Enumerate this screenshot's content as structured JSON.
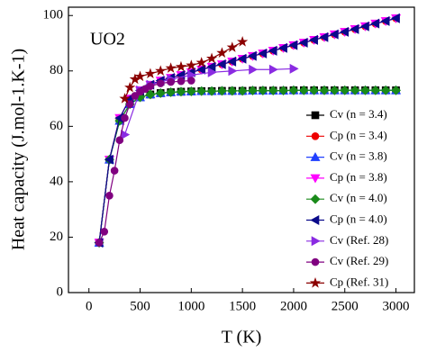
{
  "chart_data": {
    "type": "line",
    "title": "UO2",
    "xlabel": "T (K)",
    "ylabel": "Heat capacity (J.mol-1.K-1)",
    "xlim": [
      -200,
      3180
    ],
    "ylim": [
      0,
      103
    ],
    "xticks": [
      0,
      500,
      1000,
      1500,
      2000,
      2500,
      3000
    ],
    "yticks": [
      0,
      20,
      40,
      60,
      80,
      100
    ],
    "legend": "right",
    "x": [
      100,
      200,
      300,
      400,
      500,
      600,
      700,
      800,
      900,
      1000,
      1100,
      1200,
      1300,
      1400,
      1500,
      1600,
      1700,
      1800,
      1900,
      2000,
      2100,
      2200,
      2300,
      2400,
      2500,
      2600,
      2700,
      2800,
      2900,
      3000
    ],
    "series": [
      {
        "name": "Cv (n = 3.4)",
        "color": "#000000",
        "marker": "square",
        "values": [
          18,
          48,
          62,
          68,
          70.5,
          71.5,
          72,
          72.3,
          72.5,
          72.6,
          72.7,
          72.7,
          72.8,
          72.8,
          72.8,
          72.9,
          72.9,
          72.9,
          72.9,
          73,
          73,
          73,
          73,
          73,
          73,
          73,
          73,
          73,
          73,
          73
        ]
      },
      {
        "name": "Cp (n = 3.4)",
        "color": "#ee0000",
        "marker": "circle",
        "values": [
          18,
          48,
          63,
          70,
          73,
          75,
          76.5,
          77.5,
          78.5,
          79.5,
          80.5,
          81.5,
          82.4,
          83.4,
          84.4,
          85.4,
          86.3,
          87.3,
          88.3,
          89.3,
          90.2,
          91.2,
          92.2,
          93.2,
          94.1,
          95.1,
          96.1,
          97.1,
          98,
          99
        ]
      },
      {
        "name": "Cv (n = 3.8)",
        "color": "#2040ff",
        "marker": "triangle-up",
        "values": [
          18,
          48,
          62,
          68,
          70.5,
          71.5,
          72,
          72.3,
          72.5,
          72.6,
          72.7,
          72.7,
          72.8,
          72.8,
          72.8,
          72.9,
          72.9,
          72.9,
          72.9,
          73,
          73,
          73,
          73,
          73,
          73,
          73,
          73,
          73,
          73,
          73
        ]
      },
      {
        "name": "Cp (n = 3.8)",
        "color": "#ff00ff",
        "marker": "triangle-down",
        "values": [
          18,
          48,
          63,
          70,
          73,
          75,
          76.5,
          77.5,
          78.5,
          79.5,
          80.5,
          81.5,
          82.4,
          83.4,
          84.4,
          85.4,
          86.3,
          87.3,
          88.3,
          89.3,
          90.2,
          91.2,
          92.2,
          93.2,
          94.1,
          95.1,
          96.1,
          97.1,
          98,
          99
        ]
      },
      {
        "name": "Cv (n = 4.0)",
        "color": "#1a8a1a",
        "marker": "diamond",
        "values": [
          18,
          48,
          62,
          68,
          70.5,
          71.5,
          72,
          72.3,
          72.5,
          72.6,
          72.7,
          72.7,
          72.8,
          72.8,
          72.8,
          72.9,
          72.9,
          72.9,
          72.9,
          73,
          73,
          73,
          73,
          73,
          73,
          73,
          73,
          73,
          73,
          73
        ]
      },
      {
        "name": "Cp (n = 4.0)",
        "color": "#0a0a8a",
        "marker": "triangle-left",
        "values": [
          18,
          48,
          63,
          70,
          73,
          75,
          76.5,
          77.5,
          78.5,
          79.5,
          80.5,
          81.5,
          82.4,
          83.4,
          84.4,
          85.4,
          86.3,
          87.3,
          88.3,
          89.3,
          90.2,
          91.2,
          92.2,
          93.2,
          94.1,
          95.1,
          96.1,
          97.1,
          98,
          99
        ]
      },
      {
        "name": "Cv (Ref. 28)",
        "color": "#8a2be2",
        "marker": "triangle-right",
        "x": [
          350,
          500,
          600,
          800,
          1000,
          1200,
          1400,
          1600,
          1800,
          2000
        ],
        "values": [
          57,
          73,
          75,
          77,
          78.5,
          79.5,
          80,
          80.5,
          80.5,
          80.8
        ]
      },
      {
        "name": "Cv (Ref. 29)",
        "color": "#800080",
        "marker": "circle",
        "x": [
          100,
          150,
          200,
          250,
          300,
          350,
          400,
          450,
          500,
          550,
          600,
          700,
          800,
          900,
          1000
        ],
        "values": [
          18,
          22,
          35,
          44,
          55,
          63,
          68,
          71,
          72.5,
          73.5,
          74.5,
          75.5,
          76,
          76.3,
          76.5
        ]
      },
      {
        "name": "Cp (Ref. 31)",
        "color": "#8b0000",
        "marker": "star",
        "x": [
          350,
          400,
          450,
          500,
          600,
          700,
          800,
          900,
          1000,
          1100,
          1200,
          1300,
          1400,
          1500
        ],
        "values": [
          70,
          74,
          77,
          78,
          79,
          80,
          81,
          81.5,
          82,
          83,
          84.5,
          86.5,
          88.5,
          90.5
        ]
      }
    ]
  }
}
